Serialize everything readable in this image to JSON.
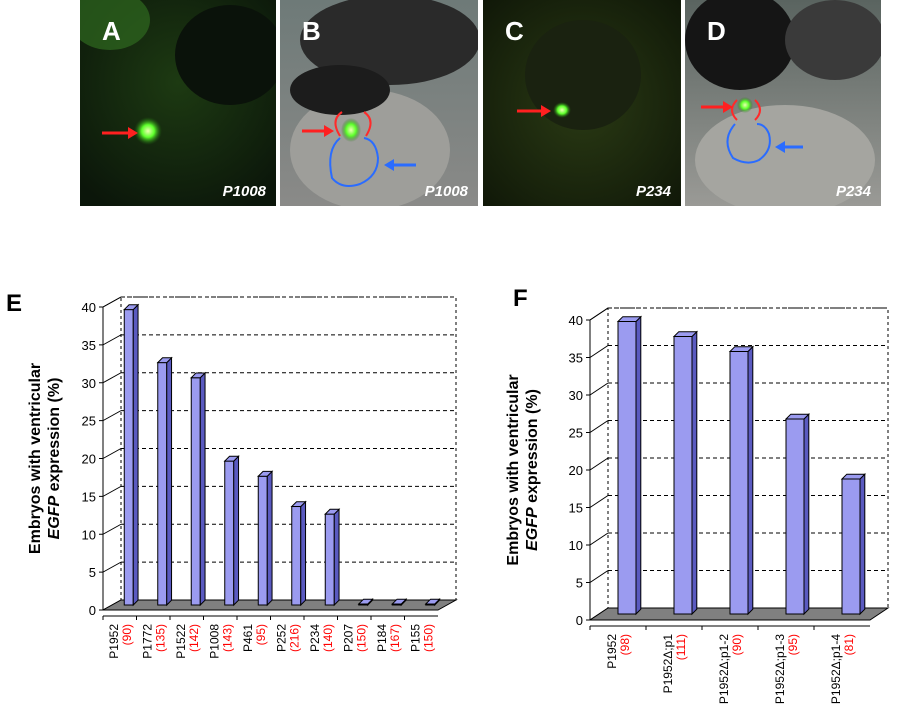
{
  "figure": {
    "photo_panels": [
      {
        "letter": "A",
        "caption": "P1008"
      },
      {
        "letter": "B",
        "caption": "P1008"
      },
      {
        "letter": "C",
        "caption": "P234"
      },
      {
        "letter": "D",
        "caption": "P234"
      }
    ],
    "colors": {
      "bar": "#9b9bf0",
      "bar_side": "#5a5ac0",
      "floor": "#808080",
      "count_text": "#ff0000"
    }
  },
  "chart_data": [
    {
      "panel": "E",
      "type": "bar",
      "ylabel_line1": "Embryos with ventricular",
      "ylabel_italic": "EGFP",
      "ylabel_line2_rest": " expression (%)",
      "ylim": [
        0,
        40
      ],
      "yticks": [
        "0",
        "5",
        "10",
        "15",
        "20",
        "25",
        "30",
        "35",
        "40"
      ],
      "grid": true,
      "categories": [
        "P1952",
        "P1772",
        "P1522",
        "P1008",
        "P461",
        "P252",
        "P234",
        "P207",
        "P184",
        "P155"
      ],
      "counts": [
        "(90)",
        "(135)",
        "(142)",
        "(143)",
        "(95)",
        "(216)",
        "(140)",
        "(150)",
        "(167)",
        "(150)"
      ],
      "values": [
        39,
        32,
        30,
        19,
        17,
        13,
        12,
        0,
        0,
        0
      ]
    },
    {
      "panel": "F",
      "type": "bar",
      "ylabel_line1": "Embryos with ventricular",
      "ylabel_italic": "EGFP",
      "ylabel_line2_rest": " expression (%)",
      "ylim": [
        0,
        40
      ],
      "yticks": [
        "0",
        "5",
        "10",
        "15",
        "20",
        "25",
        "30",
        "35",
        "40"
      ],
      "grid": true,
      "categories": [
        "P1952",
        "P1952Δ;p1",
        "P1952Δ;p1-2",
        "P1952Δ;p1-3",
        "P1952Δ;p1-4"
      ],
      "counts": [
        "(98)",
        "(111)",
        "(90)",
        "(95)",
        "(81)"
      ],
      "values": [
        39,
        37,
        35,
        26,
        18
      ]
    }
  ]
}
